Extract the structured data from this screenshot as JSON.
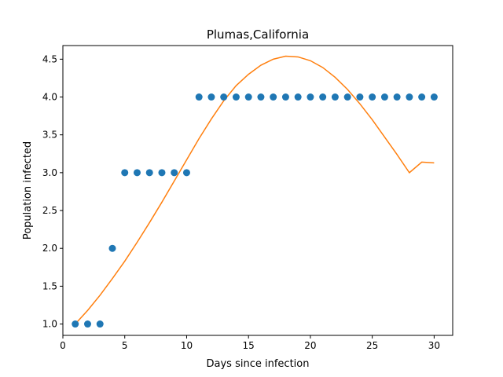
{
  "chart_data": {
    "type": "scatter",
    "title": "Plumas,California",
    "xlabel": "Days since infection",
    "ylabel": "Population infected",
    "xlim": [
      0,
      31.5
    ],
    "ylim": [
      0.85,
      4.68
    ],
    "xticks": [
      0,
      5,
      10,
      15,
      20,
      25,
      30
    ],
    "yticks": [
      1.0,
      1.5,
      2.0,
      2.5,
      3.0,
      3.5,
      4.0,
      4.5
    ],
    "grid": false,
    "colors": {
      "points": "#1f77b4",
      "fit": "#ff7f0e"
    },
    "series": [
      {
        "kind": "scatter",
        "x": [
          1,
          2,
          3,
          4,
          5,
          6,
          7,
          8,
          9,
          10,
          11,
          12,
          13,
          14,
          15,
          16,
          17,
          18,
          19,
          20,
          21,
          22,
          23,
          24,
          25,
          26,
          27,
          28,
          29,
          30
        ],
        "y": [
          1,
          1,
          1,
          2,
          3,
          3,
          3,
          3,
          3,
          3,
          4,
          4,
          4,
          4,
          4,
          4,
          4,
          4,
          4,
          4,
          4,
          4,
          4,
          4,
          4,
          4,
          4,
          4,
          4,
          4
        ]
      },
      {
        "kind": "line",
        "x": [
          1,
          2,
          3,
          4,
          5,
          6,
          7,
          8,
          9,
          10,
          11,
          12,
          13,
          14,
          15,
          16,
          17,
          18,
          19,
          20,
          21,
          22,
          23,
          24,
          25,
          26,
          27,
          28,
          29,
          30
        ],
        "y": [
          1.0,
          1.18,
          1.38,
          1.6,
          1.83,
          2.08,
          2.34,
          2.61,
          2.89,
          3.17,
          3.45,
          3.71,
          3.95,
          4.15,
          4.3,
          4.42,
          4.5,
          4.54,
          4.53,
          4.48,
          4.39,
          4.26,
          4.1,
          3.91,
          3.7,
          3.47,
          3.24,
          3.0,
          3.14,
          3.13
        ]
      }
    ]
  }
}
